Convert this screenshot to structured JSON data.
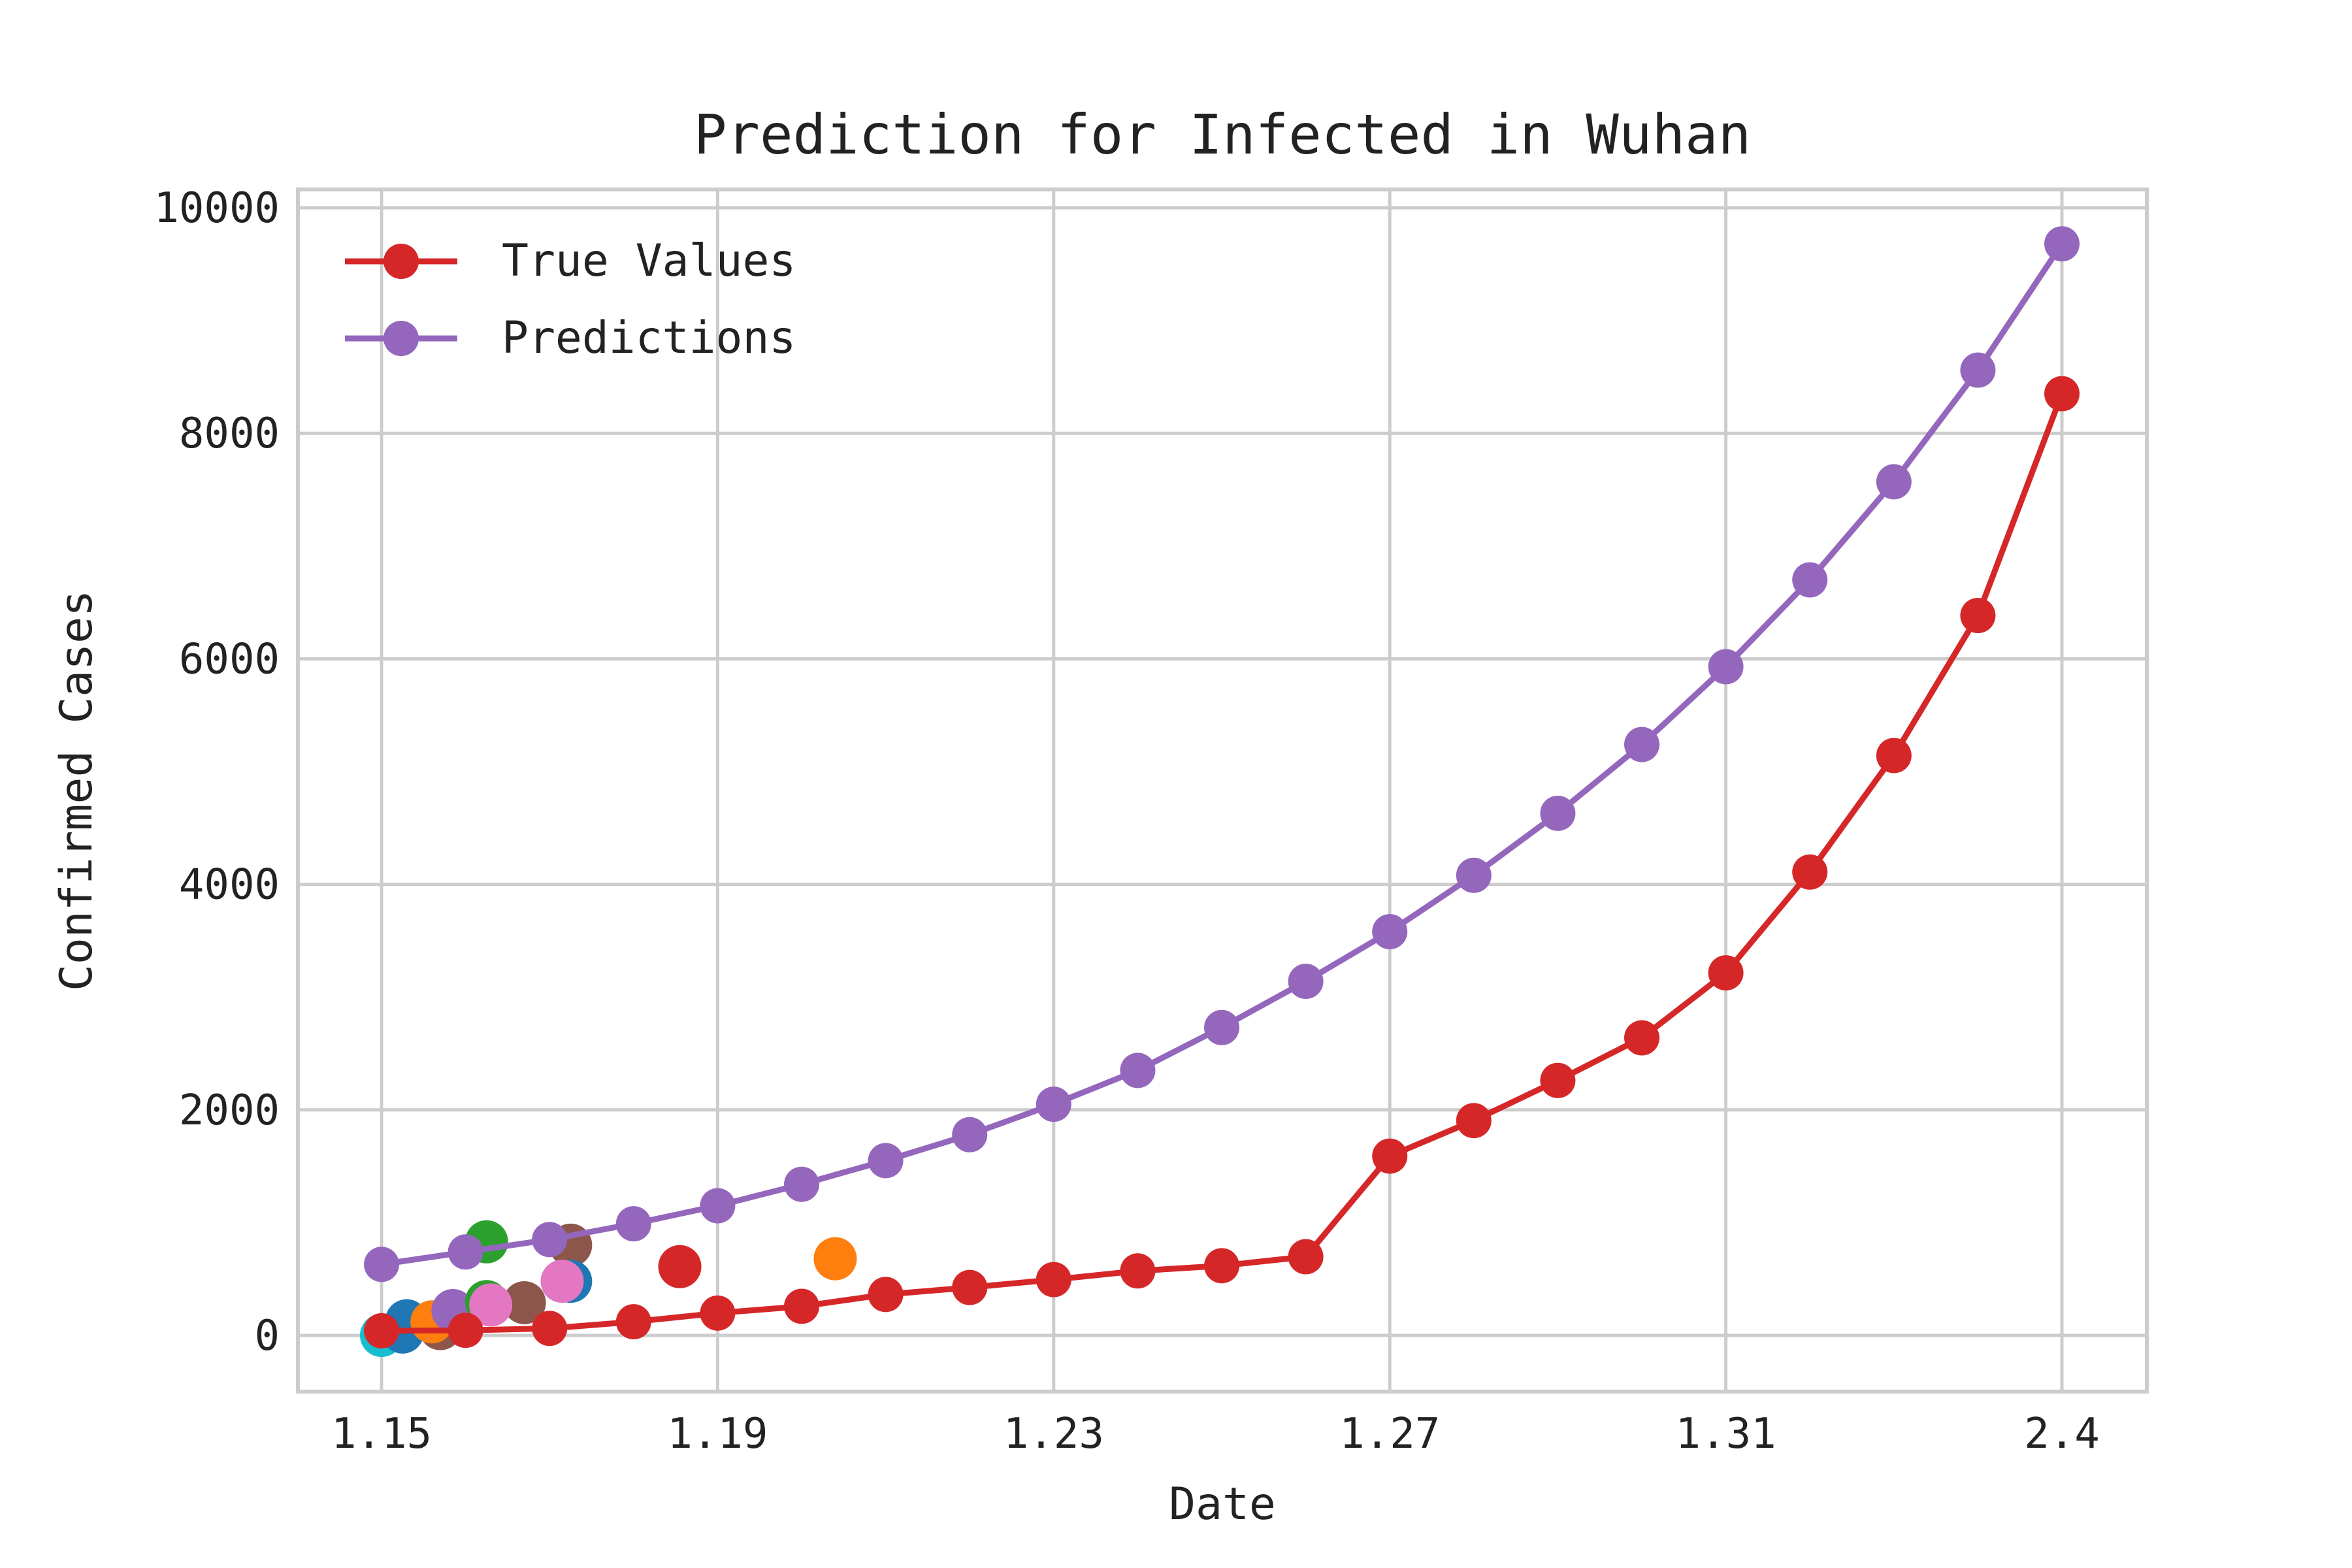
{
  "chart_data": {
    "type": "line",
    "title": "Prediction for Infected in Wuhan",
    "xlabel": "Date",
    "ylabel": "Confirmed Cases",
    "grid": true,
    "legend_position": "top-left",
    "x_tick_labels": [
      "1.15",
      "1.19",
      "1.23",
      "1.27",
      "1.31",
      "2.4"
    ],
    "y_ticks": [
      0,
      2000,
      4000,
      6000,
      8000,
      10000
    ],
    "x_domain": [
      0,
      21
    ],
    "ylim": [
      -450,
      10200
    ],
    "series": [
      {
        "name": "True Values",
        "color": "#d62728",
        "x": [
          0,
          1,
          2,
          3,
          4,
          5,
          6,
          7,
          8,
          9,
          10,
          11,
          12,
          13,
          14,
          15,
          16,
          17,
          18,
          19,
          20
        ],
        "values": [
          41,
          45,
          62,
          121,
          198,
          258,
          363,
          425,
          495,
          572,
          618,
          698,
          1590,
          1905,
          2261,
          2639,
          3215,
          4109,
          5142,
          6384,
          8351
        ]
      },
      {
        "name": "Predictions",
        "color": "#9467bd",
        "x": [
          0,
          1,
          2,
          3,
          4,
          5,
          6,
          7,
          8,
          9,
          10,
          11,
          12,
          13,
          14,
          15,
          16,
          17,
          18,
          19,
          20
        ],
        "values": [
          630,
          740,
          850,
          990,
          1150,
          1340,
          1550,
          1780,
          2050,
          2350,
          2730,
          3140,
          3580,
          4080,
          4630,
          5240,
          5930,
          6700,
          7570,
          8560,
          9680
        ]
      }
    ],
    "scatter_points": [
      {
        "x": 0.0,
        "y": 0,
        "color": "#17becf"
      },
      {
        "x": 0.25,
        "y": 30,
        "color": "#1f77b4"
      },
      {
        "x": 0.3,
        "y": 130,
        "color": "#1f77b4"
      },
      {
        "x": 0.7,
        "y": 60,
        "color": "#8c564b"
      },
      {
        "x": 0.6,
        "y": 120,
        "color": "#ff7f0e"
      },
      {
        "x": 0.85,
        "y": 220,
        "color": "#9467bd"
      },
      {
        "x": 1.25,
        "y": 830,
        "color": "#2ca02c"
      },
      {
        "x": 1.25,
        "y": 300,
        "color": "#2ca02c"
      },
      {
        "x": 1.7,
        "y": 290,
        "color": "#8c564b"
      },
      {
        "x": 1.3,
        "y": 270,
        "color": "#e377c2"
      },
      {
        "x": 2.25,
        "y": 800,
        "color": "#8c564b"
      },
      {
        "x": 2.25,
        "y": 480,
        "color": "#1f77b4"
      },
      {
        "x": 2.15,
        "y": 480,
        "color": "#e377c2"
      },
      {
        "x": 3.55,
        "y": 610,
        "color": "#d62728"
      },
      {
        "x": 5.4,
        "y": 680,
        "color": "#ff7f0e"
      }
    ]
  }
}
